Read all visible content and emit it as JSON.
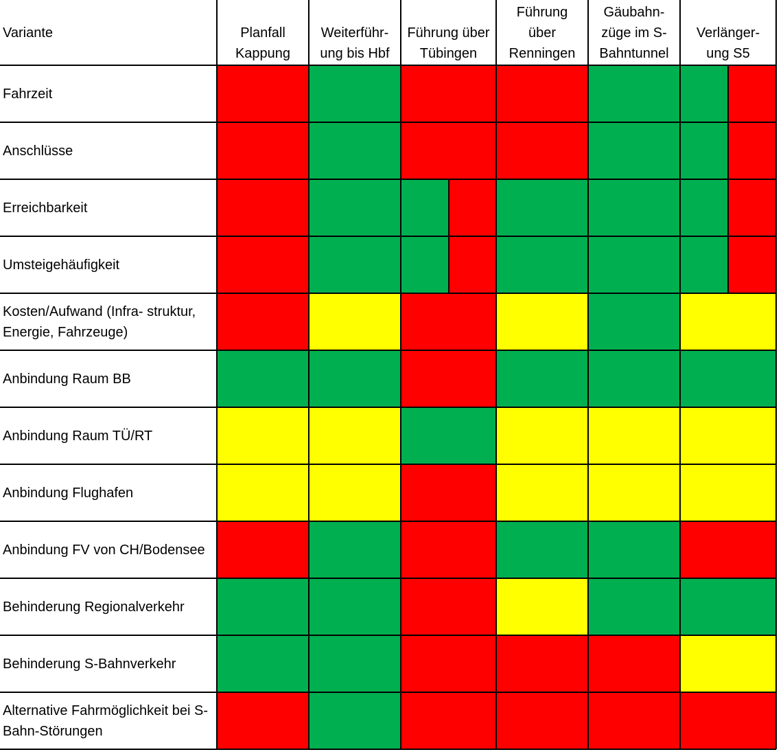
{
  "colors": {
    "red": "#FF0000",
    "green": "#00B050",
    "yellow": "#FFFF00"
  },
  "header": {
    "corner_label": "Variante",
    "columns": [
      "Planfall\nKappung",
      "Weiterführ-\nung bis Hbf",
      "Führung über\nTübingen",
      "Führung\nüber\nRenningen",
      "Gäubahn-\nzüge im S-\nBahntunnel",
      "Verlänger-\nung S5"
    ]
  },
  "rows": [
    {
      "label": "Fahrzeit",
      "ratings": [
        [
          "red"
        ],
        [
          "green"
        ],
        [
          "red"
        ],
        [
          "red"
        ],
        [
          "green"
        ],
        [
          "green",
          "red"
        ]
      ]
    },
    {
      "label": "Anschlüsse",
      "ratings": [
        [
          "red"
        ],
        [
          "green"
        ],
        [
          "red"
        ],
        [
          "red"
        ],
        [
          "green"
        ],
        [
          "green",
          "red"
        ]
      ]
    },
    {
      "label": "Erreichbarkeit",
      "ratings": [
        [
          "red"
        ],
        [
          "green"
        ],
        [
          "green",
          "red"
        ],
        [
          "green"
        ],
        [
          "green"
        ],
        [
          "green",
          "red"
        ]
      ]
    },
    {
      "label": "Umsteigehäufigkeit",
      "ratings": [
        [
          "red"
        ],
        [
          "green"
        ],
        [
          "green",
          "red"
        ],
        [
          "green"
        ],
        [
          "green"
        ],
        [
          "green",
          "red"
        ]
      ]
    },
    {
      "label": "Kosten/Aufwand (Infra- struktur,\nEnergie, Fahrzeuge)",
      "ratings": [
        [
          "red"
        ],
        [
          "yellow"
        ],
        [
          "red"
        ],
        [
          "yellow"
        ],
        [
          "green"
        ],
        [
          "yellow"
        ]
      ]
    },
    {
      "label": "Anbindung Raum BB",
      "ratings": [
        [
          "green"
        ],
        [
          "green"
        ],
        [
          "red"
        ],
        [
          "green"
        ],
        [
          "green"
        ],
        [
          "green"
        ]
      ]
    },
    {
      "label": "Anbindung Raum TÜ/RT",
      "ratings": [
        [
          "yellow"
        ],
        [
          "yellow"
        ],
        [
          "green"
        ],
        [
          "yellow"
        ],
        [
          "yellow"
        ],
        [
          "yellow"
        ]
      ]
    },
    {
      "label": "Anbindung Flughafen",
      "ratings": [
        [
          "yellow"
        ],
        [
          "yellow"
        ],
        [
          "red"
        ],
        [
          "yellow"
        ],
        [
          "yellow"
        ],
        [
          "yellow"
        ]
      ]
    },
    {
      "label": "Anbindung FV von CH/Bodensee",
      "ratings": [
        [
          "red"
        ],
        [
          "green"
        ],
        [
          "red"
        ],
        [
          "green"
        ],
        [
          "green"
        ],
        [
          "red"
        ]
      ]
    },
    {
      "label": "Behinderung Regionalverkehr",
      "ratings": [
        [
          "green"
        ],
        [
          "green"
        ],
        [
          "red"
        ],
        [
          "yellow"
        ],
        [
          "green"
        ],
        [
          "green"
        ]
      ]
    },
    {
      "label": "Behinderung S-Bahnverkehr",
      "ratings": [
        [
          "green"
        ],
        [
          "green"
        ],
        [
          "red"
        ],
        [
          "red"
        ],
        [
          "red"
        ],
        [
          "yellow"
        ]
      ]
    },
    {
      "label": "Alternative Fahrmöglichkeit bei S-\nBahn-Störungen",
      "ratings": [
        [
          "red"
        ],
        [
          "green"
        ],
        [
          "red"
        ],
        [
          "red"
        ],
        [
          "red"
        ],
        [
          "red"
        ]
      ]
    }
  ]
}
